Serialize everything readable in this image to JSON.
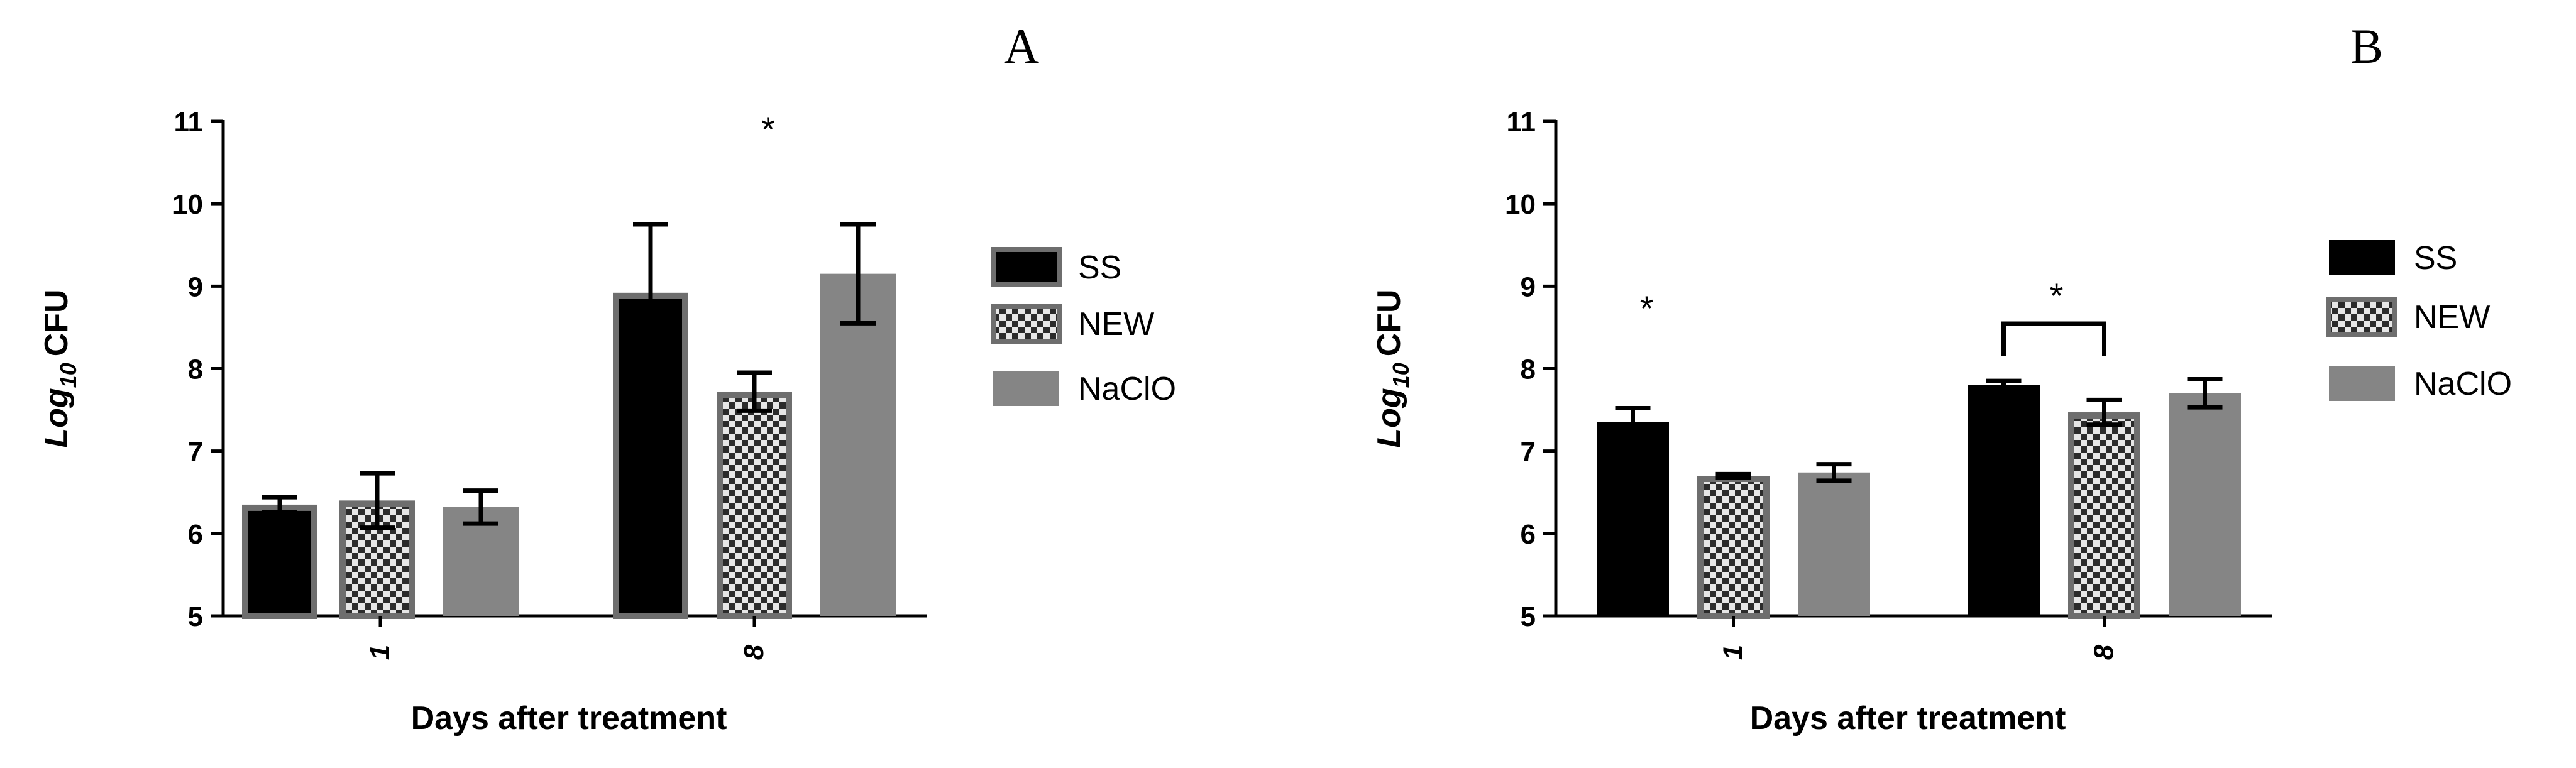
{
  "chart_data": [
    {
      "type": "bar",
      "panel_label": "A",
      "categories": [
        "1",
        "8"
      ],
      "series": [
        {
          "name": "SS",
          "values": [
            6.35,
            8.92
          ],
          "errors": [
            0.09,
            0.83
          ],
          "color": "#000000",
          "pattern": "solid-outlined"
        },
        {
          "name": "NEW",
          "values": [
            6.4,
            7.72
          ],
          "errors": [
            0.33,
            0.23
          ],
          "color": "#2b2b2b",
          "pattern": "checker"
        },
        {
          "name": "NaClO",
          "values": [
            6.32,
            9.15
          ],
          "errors": [
            0.2,
            0.6
          ],
          "color": "#858585",
          "pattern": "solid"
        }
      ],
      "ylabel_base": "Log",
      "ylabel_sub": "10",
      "ylabel_rest": "CFU",
      "xlabel": "Days after treatment",
      "ylim": [
        5,
        11
      ],
      "yticks": [
        "5",
        "6",
        "7",
        "8",
        "9",
        "10",
        "11"
      ],
      "annotations": [
        {
          "text": "*",
          "category": "8",
          "type": "group"
        }
      ],
      "legend_position": "right",
      "grid": false
    },
    {
      "type": "bar",
      "panel_label": "B",
      "categories": [
        "1",
        "8"
      ],
      "series": [
        {
          "name": "SS",
          "values": [
            7.35,
            7.8
          ],
          "errors": [
            0.17,
            0.05
          ],
          "color": "#000000",
          "pattern": "solid"
        },
        {
          "name": "NEW",
          "values": [
            6.7,
            7.47
          ],
          "errors": [
            0.02,
            0.15
          ],
          "color": "#2b2b2b",
          "pattern": "checker"
        },
        {
          "name": "NaClO",
          "values": [
            6.74,
            7.7
          ],
          "errors": [
            0.1,
            0.17
          ],
          "color": "#858585",
          "pattern": "solid"
        }
      ],
      "ylabel_base": "Log",
      "ylabel_sub": "10",
      "ylabel_rest": "CFU",
      "xlabel": "Days after treatment",
      "ylim": [
        5,
        11
      ],
      "yticks": [
        "5",
        "6",
        "7",
        "8",
        "9",
        "10",
        "11"
      ],
      "annotations": [
        {
          "text": "*",
          "category": "1",
          "type": "bar",
          "series": "SS"
        },
        {
          "text": "*",
          "category": "8",
          "type": "bracket",
          "from": "SS",
          "to": "NEW"
        }
      ],
      "legend_position": "right",
      "grid": false
    }
  ]
}
